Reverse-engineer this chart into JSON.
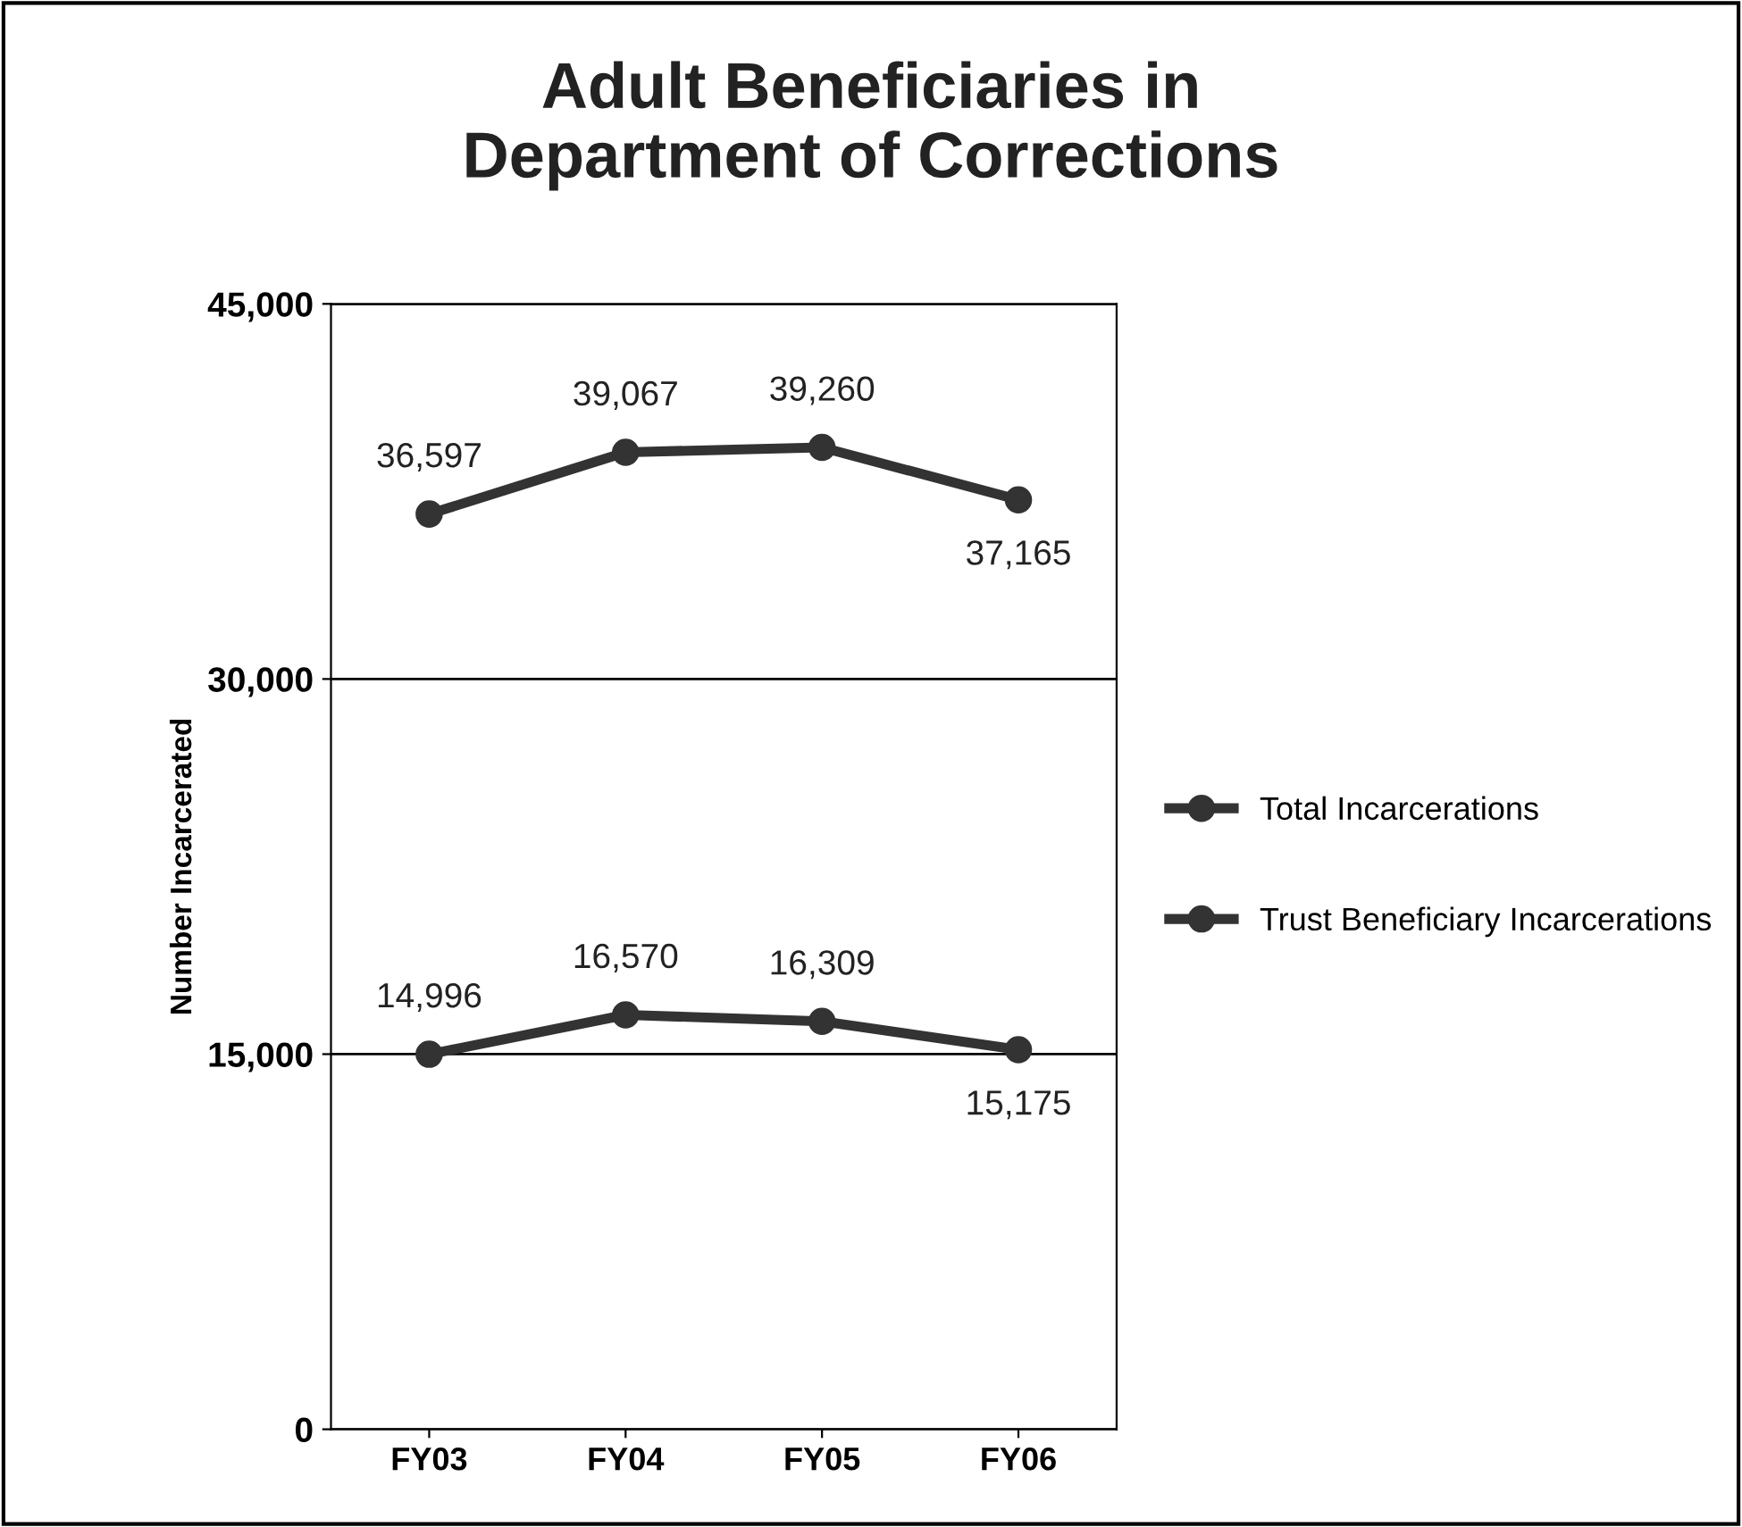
{
  "chart_data": {
    "type": "line",
    "title": "Adult Beneficiaries in\nDepartment of Corrections",
    "ylabel": "Number Incarcerated",
    "categories": [
      "FY03",
      "FY04",
      "FY05",
      "FY06"
    ],
    "series": [
      {
        "name": "Total Incarcerations",
        "color": "#333333",
        "values": [
          36597,
          39067,
          39260,
          37165
        ],
        "value_labels": [
          "36,597",
          "39,067",
          "39,260",
          "37,165"
        ]
      },
      {
        "name": "Trust Beneficiary Incarcerations",
        "color": "#333333",
        "values": [
          14996,
          16570,
          16309,
          15175
        ],
        "value_labels": [
          "14,996",
          "16,570",
          "16,309",
          "15,175"
        ]
      }
    ],
    "ylim": [
      0,
      45000
    ],
    "yticks": [
      {
        "value": 0,
        "label": "0"
      },
      {
        "value": 15000,
        "label": "15,000"
      },
      {
        "value": 30000,
        "label": "30,000"
      },
      {
        "value": 45000,
        "label": "45,000"
      }
    ],
    "grid": "y",
    "legend": "right",
    "marker": "circle",
    "line_style": "solid"
  }
}
